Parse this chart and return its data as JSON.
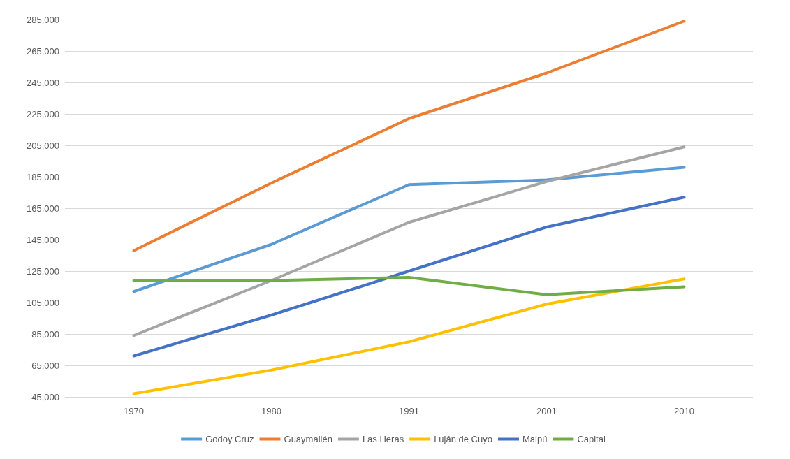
{
  "chart_data": {
    "type": "line",
    "categories": [
      "1970",
      "1980",
      "1991",
      "2001",
      "2010"
    ],
    "series": [
      {
        "name": "Godoy Cruz",
        "color": "#5b9bd5",
        "values": [
          112000,
          142000,
          180000,
          183000,
          191000
        ]
      },
      {
        "name": "Guaymallén",
        "color": "#ed7d31",
        "values": [
          138000,
          181000,
          222000,
          251000,
          284000
        ]
      },
      {
        "name": "Las Heras",
        "color": "#a5a5a5",
        "values": [
          84000,
          119000,
          156000,
          182000,
          204000
        ]
      },
      {
        "name": "Luján de Cuyo",
        "color": "#ffc000",
        "values": [
          47000,
          62000,
          80000,
          104000,
          120000
        ]
      },
      {
        "name": "Maipú",
        "color": "#4472c4",
        "values": [
          71000,
          97000,
          125000,
          153000,
          172000
        ]
      },
      {
        "name": "Capital",
        "color": "#70ad47",
        "values": [
          119000,
          119000,
          121000,
          110000,
          115000
        ]
      }
    ],
    "ylim": [
      45000,
      285000
    ],
    "yticks": [
      {
        "value": 45000,
        "label": "45,000"
      },
      {
        "value": 65000,
        "label": "65,000"
      },
      {
        "value": 85000,
        "label": "85,000"
      },
      {
        "value": 105000,
        "label": "105,000"
      },
      {
        "value": 125000,
        "label": "125,000"
      },
      {
        "value": 145000,
        "label": "145,000"
      },
      {
        "value": 165000,
        "label": "165,000"
      },
      {
        "value": 185000,
        "label": "185,000"
      },
      {
        "value": 205000,
        "label": "205,000"
      },
      {
        "value": 225000,
        "label": "225,000"
      },
      {
        "value": 245000,
        "label": "245,000"
      },
      {
        "value": 265000,
        "label": "265,000"
      },
      {
        "value": 285000,
        "label": "285,000"
      }
    ],
    "grid": "y",
    "legend": "bottom",
    "marker": "none",
    "line_style": "solid"
  }
}
